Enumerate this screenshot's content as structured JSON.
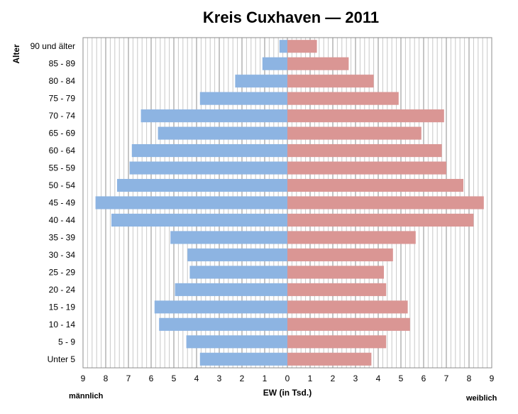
{
  "chart_data": {
    "type": "bar",
    "orientation": "horizontal",
    "title": "Kreis Cuxhaven — 2011",
    "ylabel": "Alter",
    "xlabel": "EW (in Tsd.)",
    "left_label": "männlich",
    "right_label": "weiblich",
    "xlim": [
      -9,
      9
    ],
    "x_ticks": [
      "9",
      "8",
      "7",
      "6",
      "5",
      "4",
      "3",
      "2",
      "1",
      "0",
      "1",
      "2",
      "3",
      "4",
      "5",
      "6",
      "7",
      "8",
      "9"
    ],
    "grid": true,
    "categories": [
      "90 und älter",
      "85 - 89",
      "80 - 84",
      "75 - 79",
      "70 - 74",
      "65 - 69",
      "60 - 64",
      "55 - 59",
      "50 - 54",
      "45 - 49",
      "40 - 44",
      "35 - 39",
      "30 - 34",
      "25 - 29",
      "20 - 24",
      "15 - 19",
      "10 - 14",
      "5 - 9",
      "Unter 5"
    ],
    "series": [
      {
        "name": "männlich",
        "color": "#8db4e2",
        "values": [
          0.35,
          1.1,
          2.3,
          3.85,
          6.45,
          5.7,
          6.85,
          6.95,
          7.5,
          8.45,
          7.75,
          5.15,
          4.4,
          4.3,
          4.95,
          5.85,
          5.65,
          4.45,
          3.85
        ]
      },
      {
        "name": "weiblich",
        "color": "#da9694",
        "values": [
          1.3,
          2.7,
          3.8,
          4.9,
          6.9,
          5.9,
          6.8,
          7.0,
          7.75,
          8.65,
          8.2,
          5.65,
          4.65,
          4.25,
          4.35,
          5.3,
          5.4,
          4.35,
          3.7
        ]
      }
    ]
  }
}
